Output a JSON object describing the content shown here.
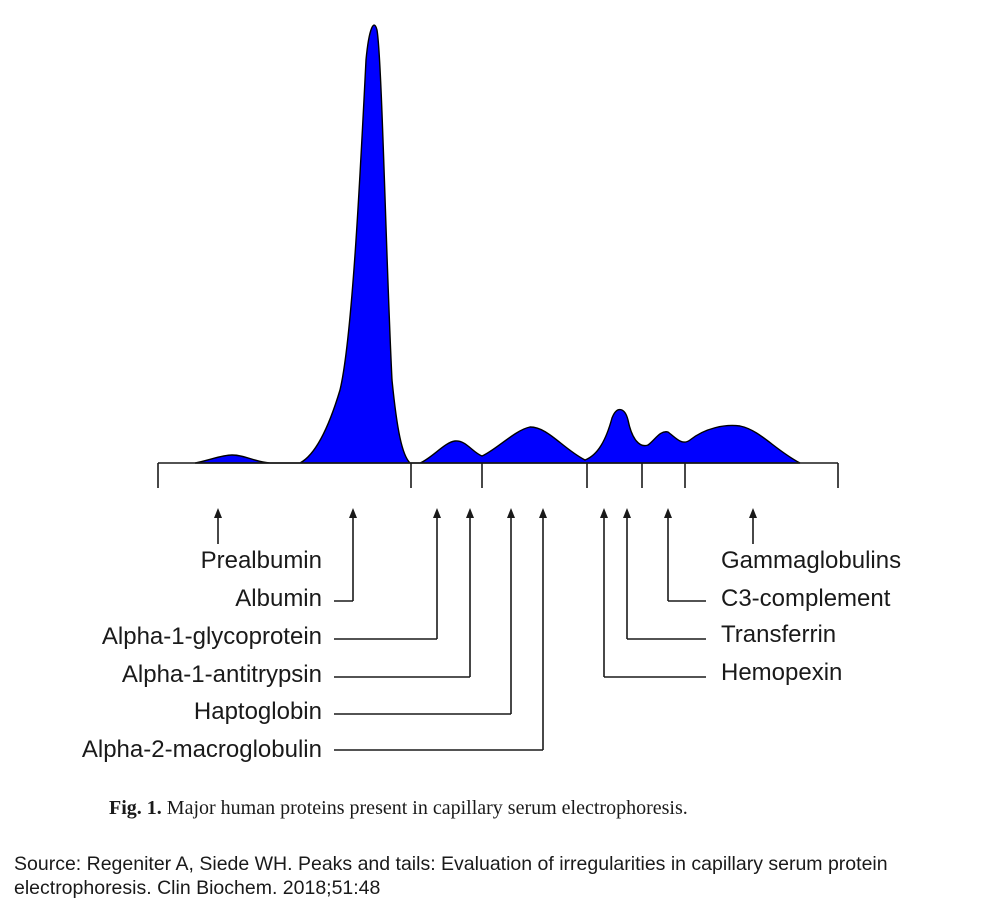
{
  "colors": {
    "fill": "#0000ff",
    "stroke": "#000000",
    "text": "#1a1a1a"
  },
  "labels": {
    "prealbumin": "Prealbumin",
    "albumin": "Albumin",
    "alpha1_glycoprotein": "Alpha-1-glycoprotein",
    "alpha1_antitrypsin": "Alpha-1-antitrypsin",
    "haptoglobin": "Haptoglobin",
    "alpha2_macroglobulin": "Alpha-2-macroglobulin",
    "gammaglobulins": "Gammaglobulins",
    "c3_complement": "C3-complement",
    "transferrin": "Transferrin",
    "hemopexin": "Hemopexin"
  },
  "caption": {
    "prefix": "Fig. 1.",
    "text": " Major human proteins present in capillary serum electrophoresis."
  },
  "source": "Source: Regeniter A, Siede WH. Peaks and tails: Evaluation of irregularities in capillary serum protein electrophoresis. Clin Biochem. 2018;51:48"
}
